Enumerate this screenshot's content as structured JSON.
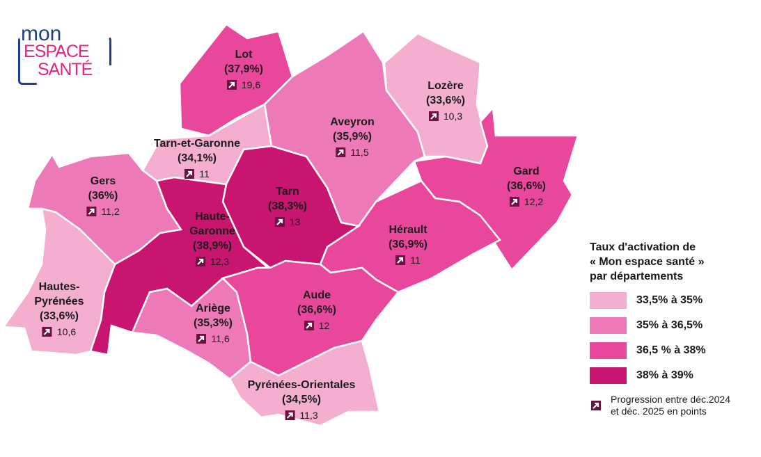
{
  "logo": {
    "line1": "mon",
    "line2": "ESPACE",
    "line3": "SANTÉ"
  },
  "colors": {
    "c1": "#f4aed0",
    "c2": "#ee79b8",
    "c3": "#e8479c",
    "c4": "#c8156f",
    "arrow": "#6e1040"
  },
  "departments": [
    {
      "name": "Lot",
      "rate": "(37,9%)",
      "progress": "19,6",
      "cls": "c3"
    },
    {
      "name": "Lozère",
      "rate": "(33,6%)",
      "progress": "10,3",
      "cls": "c1"
    },
    {
      "name": "Aveyron",
      "rate": "(35,9%)",
      "progress": "11,5",
      "cls": "c2"
    },
    {
      "name": "Tarn-et-Garonne",
      "rate": "(34,1%)",
      "progress": "11",
      "cls": "c1"
    },
    {
      "name": "Gard",
      "rate": "(36,6%)",
      "progress": "12,2",
      "cls": "c3"
    },
    {
      "name": "Gers",
      "rate": "(36%)",
      "progress": "11,2",
      "cls": "c2"
    },
    {
      "name": "Tarn",
      "rate": "(38,3%)",
      "progress": "13",
      "cls": "c4"
    },
    {
      "name": "Haute-Garonne",
      "name_lines": [
        "Haute-",
        "Garonne"
      ],
      "rate": "(38,9%)",
      "progress": "12,3",
      "cls": "c4"
    },
    {
      "name": "Hérault",
      "rate": "(36,9%)",
      "progress": "11",
      "cls": "c3"
    },
    {
      "name": "Hautes-Pyrénées",
      "name_lines": [
        "Hautes-",
        "Pyrénées"
      ],
      "rate": "(33,6%)",
      "progress": "10,6",
      "cls": "c1"
    },
    {
      "name": "Ariège",
      "rate": "(35,3%)",
      "progress": "11,6",
      "cls": "c2"
    },
    {
      "name": "Aude",
      "rate": "(36,6%)",
      "progress": "12",
      "cls": "c3"
    },
    {
      "name": "Pyrénées-Orientales",
      "rate": "(34,5%)",
      "progress": "11,3",
      "cls": "c1"
    }
  ],
  "legend": {
    "title": [
      "Taux d'activation de",
      "« Mon espace santé »",
      "par départements"
    ],
    "items": [
      {
        "label": "33,5% à 35%",
        "color": "#f4aed0"
      },
      {
        "label": "35% à 36,5%",
        "color": "#ee79b8"
      },
      {
        "label": "36,5 % à 38%",
        "color": "#e8479c"
      },
      {
        "label": "38% à 39%",
        "color": "#c8156f"
      }
    ],
    "note": [
      "Progression entre déc.2024",
      "et déc. 2025 en points"
    ]
  }
}
